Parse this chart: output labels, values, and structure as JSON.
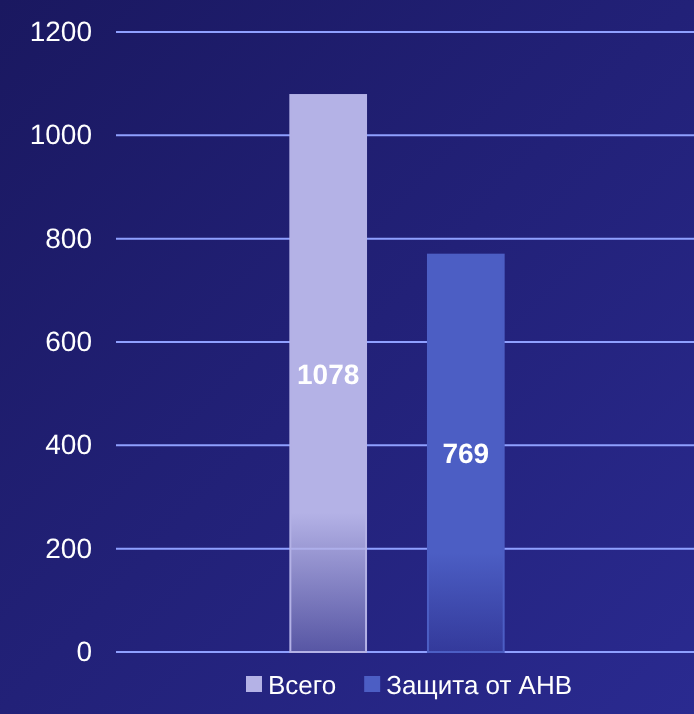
{
  "chart_data": {
    "type": "bar",
    "categories": [
      null
    ],
    "series": [
      {
        "name": "Всего",
        "color": "#b4b2e6",
        "values": [
          1078
        ]
      },
      {
        "name": "Защита от АНВ",
        "color": "#4c5ec4",
        "values": [
          769
        ]
      }
    ],
    "ylim": [
      0,
      1200
    ],
    "yticks": [
      0,
      200,
      400,
      600,
      800,
      1000,
      1200
    ],
    "grid": "y",
    "legend": "bottom",
    "data_labels": true
  }
}
